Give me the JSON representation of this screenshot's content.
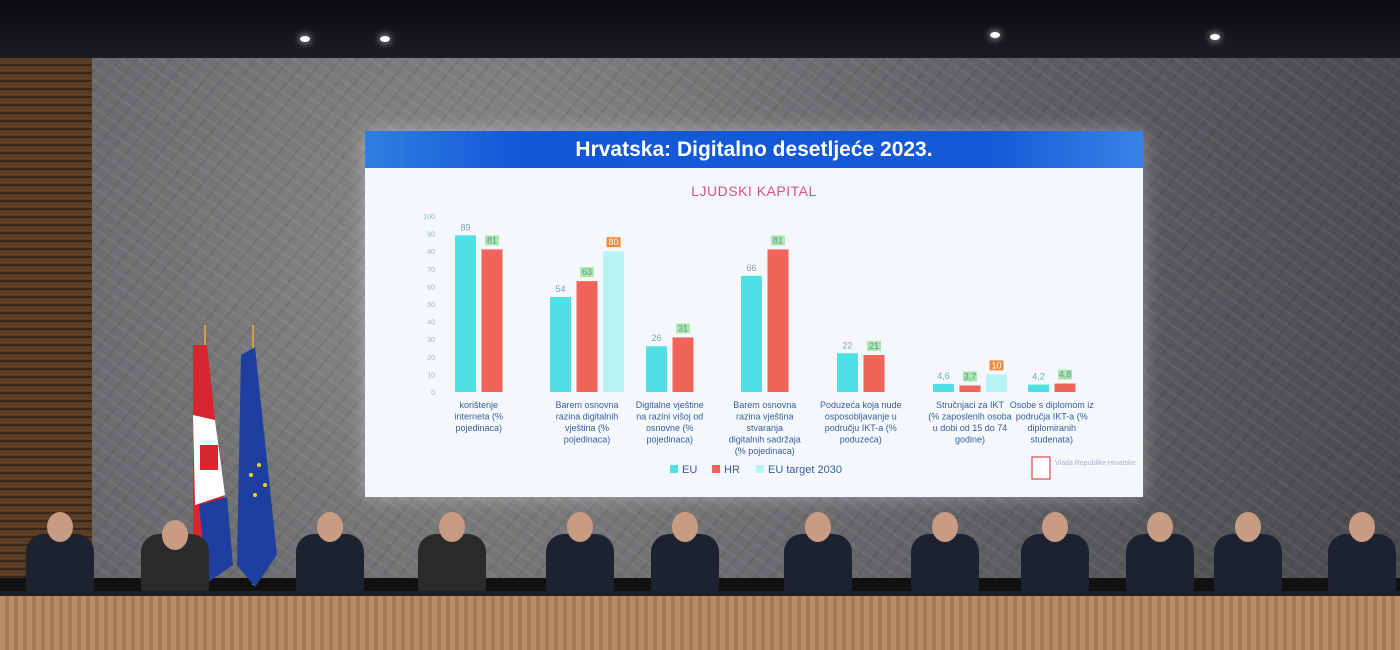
{
  "slide": {
    "title": "Hrvatska: Digitalno desetljeće 2023.",
    "subtitle": "LJUDSKI KAPITAL",
    "logo_text": "Vlada Republike Hrvatske"
  },
  "colors": {
    "eu": "#4fe0e6",
    "hr": "#f0645a",
    "target": "#b8f2f4",
    "title_bar": "#1459d6",
    "subtitle": "#e2517a"
  },
  "chart_data": {
    "type": "bar",
    "title": "LJUDSKI KAPITAL",
    "ylim": [
      0,
      100
    ],
    "yticks": [
      "0",
      "10",
      "20",
      "30",
      "40",
      "50",
      "60",
      "70",
      "80",
      "90",
      "100"
    ],
    "categories": [
      "korištenje interneta (% pojedinaca)",
      "Barem osnovna razina digitalnih vještina (% pojedinaca)",
      "Digitalne vještine na razini višoj od osnovne (% pojedinaca)",
      "Barem osnovna razina vještina stvaranja digitalnih sadržaja (% pojedinaca)",
      "Poduzeća koja nude osposobljavanje u području IKT-a (% poduzeća)",
      "Stručnjaci za IKT (% zaposlenih osoba u dobi od 15 do 74 godine)",
      "Osobe s diplomom iz područja IKT-a (% diplomiranih studenata)"
    ],
    "series": [
      {
        "name": "EU",
        "values": [
          89,
          54,
          26,
          66,
          22,
          4.6,
          4.2
        ],
        "labels": [
          "89",
          "54",
          "26",
          "66",
          "22",
          "4,6",
          "4,2"
        ]
      },
      {
        "name": "HR",
        "values": [
          81,
          63,
          31,
          81,
          21,
          3.7,
          4.8
        ],
        "labels": [
          "81",
          "63",
          "31",
          "81",
          "21",
          "3,7",
          "4,8"
        ]
      },
      {
        "name": "EU target 2030",
        "values": [
          null,
          80,
          null,
          null,
          null,
          10,
          null
        ],
        "labels": [
          null,
          "80",
          null,
          null,
          null,
          "10",
          null
        ]
      }
    ],
    "legend": "bottom",
    "grid": false
  }
}
